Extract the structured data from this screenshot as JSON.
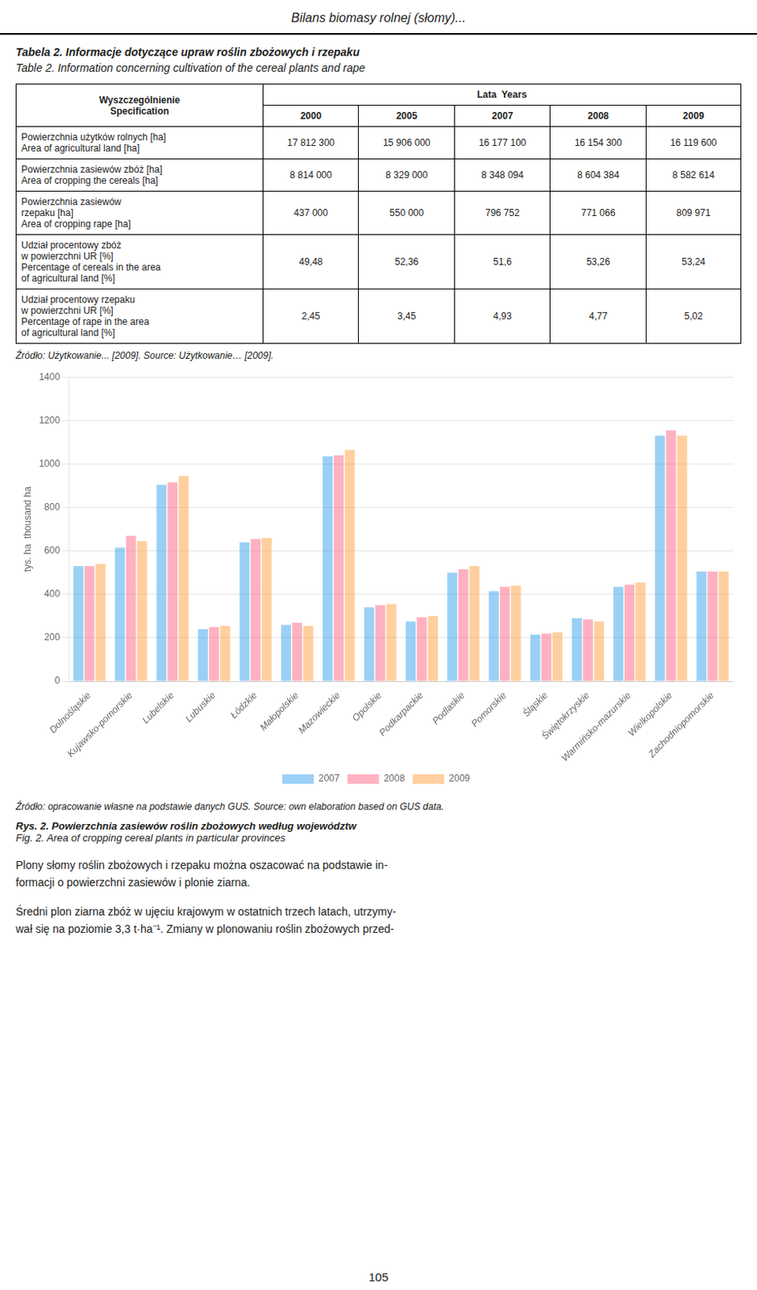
{
  "page_title": "Bilans biomasy rolnej (słomy)...",
  "table": {
    "title_pl": "Tabela 2. Informacje dotyczące upraw roślin zbożowych i rzepaku",
    "title_en": "Table 2. Information concerning cultivation of the cereal plants and rape",
    "spec_pl": "Wyszczególnienie",
    "spec_en": "Specification",
    "years_label": "Lata  Years",
    "years": [
      "2000",
      "2005",
      "2007",
      "2008",
      "2009"
    ],
    "rows": [
      {
        "label_pl": "Powierzchnia użytków rolnych [ha]",
        "label_en": "Area of agricultural land [ha]",
        "values": [
          "17 812 300",
          "15 906 000",
          "16 177 100",
          "16 154 300",
          "16 119 600"
        ]
      },
      {
        "label_pl": "Powierzchnia zasiewów zbóż [ha]",
        "label_en": "Area of cropping the cereals [ha]",
        "values": [
          "8 814 000",
          "8 329 000",
          "8 348 094",
          "8 604 384",
          "8 582 614"
        ]
      },
      {
        "label_pl": "Powierzchnia zasiewów\nrzepaku [ha]",
        "label_en": "Area of cropping rape [ha]",
        "values": [
          "437 000",
          "550 000",
          "796 752",
          "771 066",
          "809 971"
        ]
      },
      {
        "label_pl": "Udział procentowy zbóż\nw powierzchni UR [%]",
        "label_en": "Percentage of cereals in the area\nof agricultural land [%]",
        "values": [
          "49,48",
          "52,36",
          "51,6",
          "53,26",
          "53,24"
        ]
      },
      {
        "label_pl": "Udział procentowy rzepaku\nw powierzchni UR [%]",
        "label_en": "Percentage of rape in the area\nof agricultural land [%]",
        "values": [
          "2,45",
          "3,45",
          "4,93",
          "4,77",
          "5,02"
        ]
      }
    ],
    "source": "Źródło: Użytkowanie... [2009]. Source: Użytkowanie… [2009]."
  },
  "chart_data": {
    "type": "bar",
    "categories": [
      "Dolnośląskie",
      "Kujawsko-pomorskie",
      "Lubelskie",
      "Lubuskie",
      "Łódzkie",
      "Małopolskie",
      "Mazowieckie",
      "Opolskie",
      "Podkarpackie",
      "Podlaskie",
      "Pomorskie",
      "Śląskie",
      "Świętokrzyskie",
      "Warmińsko-mazurskie",
      "Wielkopolskie",
      "Zachodniopomorskie"
    ],
    "series": [
      {
        "name": "2007",
        "values": [
          530,
          615,
          905,
          240,
          640,
          260,
          1035,
          340,
          275,
          500,
          415,
          215,
          290,
          435,
          1130,
          505
        ]
      },
      {
        "name": "2008",
        "values": [
          530,
          670,
          915,
          250,
          655,
          270,
          1040,
          350,
          295,
          515,
          435,
          220,
          285,
          445,
          1155,
          505
        ]
      },
      {
        "name": "2009",
        "values": [
          540,
          645,
          945,
          255,
          660,
          255,
          1065,
          355,
          300,
          530,
          440,
          225,
          275,
          455,
          1130,
          505
        ]
      }
    ],
    "ylabel": "tys. ha  thousand ha",
    "ylim": [
      0,
      1400
    ],
    "yticks": [
      0,
      200,
      400,
      600,
      800,
      1000,
      1200,
      1400
    ],
    "grid": true,
    "legend": "bottom"
  },
  "chart_source": "Źródło: opracowanie własne na podstawie danych GUS. Source: own elaboration based on GUS data.",
  "figure_caption_pl": "Rys. 2. Powierzchnia zasiewów roślin zbożowych według województw",
  "figure_caption_en": "Fig. 2. Area of cropping cereal plants in particular provinces",
  "body_text1": "Plony słomy roślin zbożowych i rzepaku można oszacować na podstawie in-\nformacji o powierzchni zasiewów i plonie ziarna.",
  "body_text2": "Średni plon ziarna zbóż w ujęciu krajowym w ostatnich trzech latach, utrzymy-\nwał się na poziomie 3,3 t·ha⁻¹. Zmiany w plonowaniu roślin zbożowych przed-",
  "page_number": "105"
}
